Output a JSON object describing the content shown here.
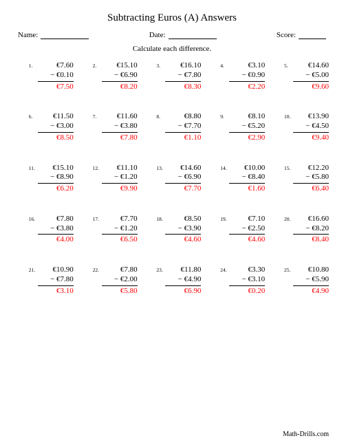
{
  "page": {
    "title": "Subtracting Euros (A) Answers",
    "name_label": "Name:",
    "date_label": "Date:",
    "score_label": "Score:",
    "instruction": "Calculate each difference.",
    "footer": "Math-Drills.com",
    "answer_color": "#ff0000",
    "font_family": "Times New Roman",
    "title_fontsize": 15,
    "body_fontsize": 11
  },
  "problems": [
    {
      "n": "1.",
      "m": "€7.60",
      "s": "− €0.10",
      "a": "€7.50"
    },
    {
      "n": "2.",
      "m": "€15.10",
      "s": "− €6.90",
      "a": "€8.20"
    },
    {
      "n": "3.",
      "m": "€16.10",
      "s": "− €7.80",
      "a": "€8.30"
    },
    {
      "n": "4.",
      "m": "€3.10",
      "s": "− €0.90",
      "a": "€2.20"
    },
    {
      "n": "5.",
      "m": "€14.60",
      "s": "− €5.00",
      "a": "€9.60"
    },
    {
      "n": "6.",
      "m": "€11.50",
      "s": "− €3.00",
      "a": "€8.50"
    },
    {
      "n": "7.",
      "m": "€11.60",
      "s": "− €3.80",
      "a": "€7.80"
    },
    {
      "n": "8.",
      "m": "€8.80",
      "s": "− €7.70",
      "a": "€1.10"
    },
    {
      "n": "9.",
      "m": "€8.10",
      "s": "− €5.20",
      "a": "€2.90"
    },
    {
      "n": "10.",
      "m": "€13.90",
      "s": "− €4.50",
      "a": "€9.40"
    },
    {
      "n": "11.",
      "m": "€15.10",
      "s": "− €8.90",
      "a": "€6.20"
    },
    {
      "n": "12.",
      "m": "€11.10",
      "s": "− €1.20",
      "a": "€9.90"
    },
    {
      "n": "13.",
      "m": "€14.60",
      "s": "− €6.90",
      "a": "€7.70"
    },
    {
      "n": "14.",
      "m": "€10.00",
      "s": "− €8.40",
      "a": "€1.60"
    },
    {
      "n": "15.",
      "m": "€12.20",
      "s": "− €5.80",
      "a": "€6.40"
    },
    {
      "n": "16.",
      "m": "€7.80",
      "s": "− €3.80",
      "a": "€4.00"
    },
    {
      "n": "17.",
      "m": "€7.70",
      "s": "− €1.20",
      "a": "€6.50"
    },
    {
      "n": "18.",
      "m": "€8.50",
      "s": "− €3.90",
      "a": "€4.60"
    },
    {
      "n": "19.",
      "m": "€7.10",
      "s": "− €2.50",
      "a": "€4.60"
    },
    {
      "n": "20.",
      "m": "€16.60",
      "s": "− €8.20",
      "a": "€8.40"
    },
    {
      "n": "21.",
      "m": "€10.90",
      "s": "− €7.80",
      "a": "€3.10"
    },
    {
      "n": "22.",
      "m": "€7.80",
      "s": "− €2.00",
      "a": "€5.80"
    },
    {
      "n": "23.",
      "m": "€11.80",
      "s": "− €4.90",
      "a": "€6.90"
    },
    {
      "n": "24.",
      "m": "€3.30",
      "s": "− €3.10",
      "a": "€0.20"
    },
    {
      "n": "25.",
      "m": "€10.80",
      "s": "− €5.90",
      "a": "€4.90"
    }
  ]
}
